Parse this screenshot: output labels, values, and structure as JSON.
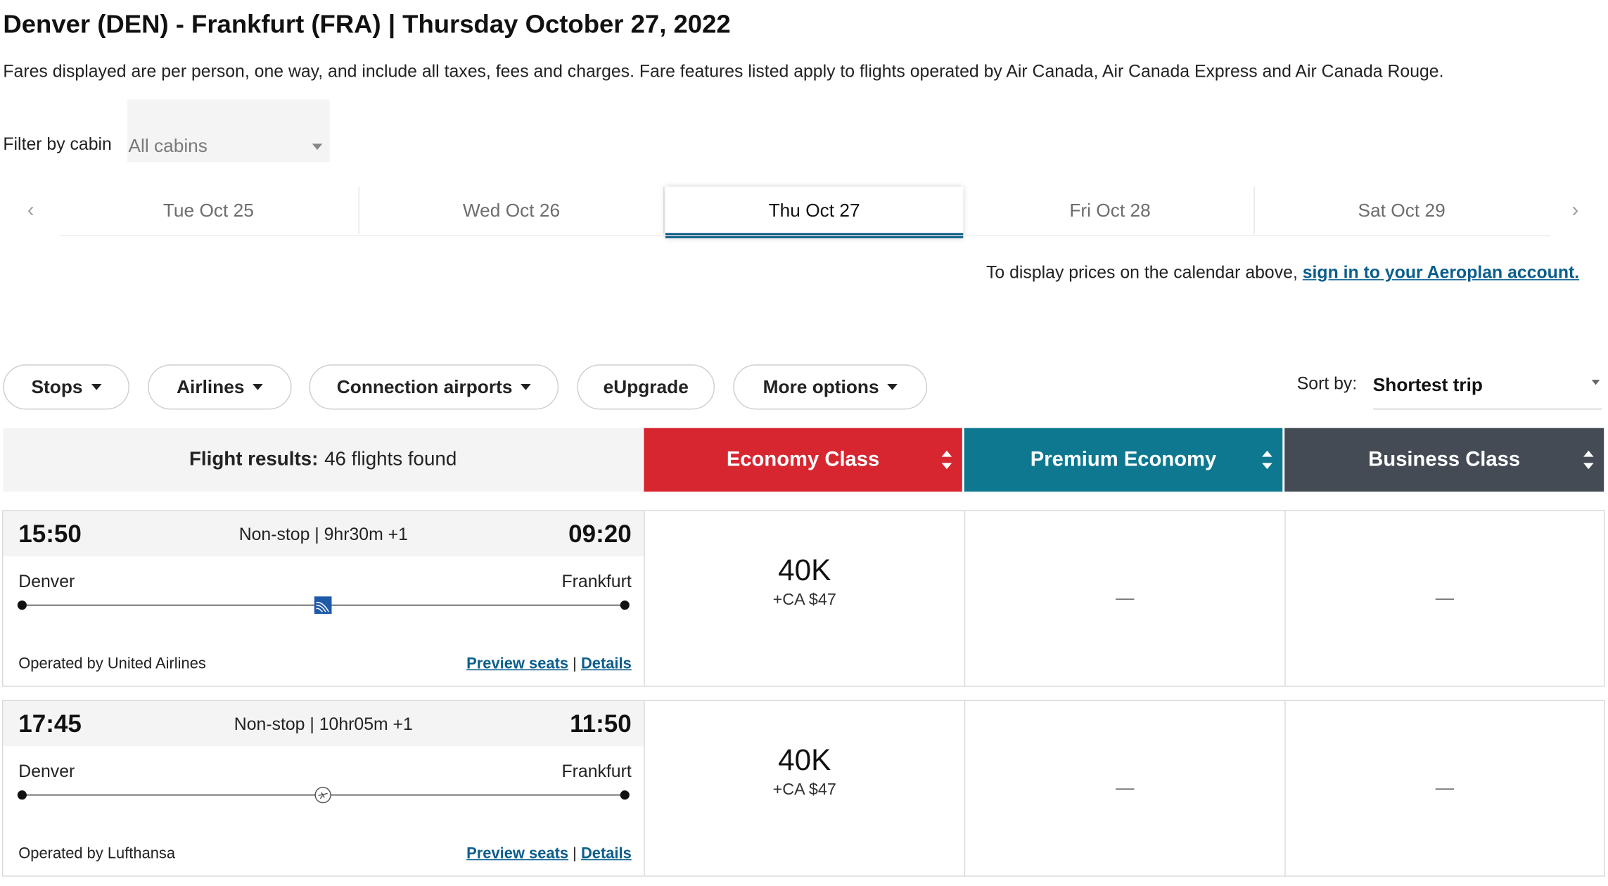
{
  "header": {
    "title": "Denver (DEN) - Frankfurt (FRA)  |  Thursday October 27, 2022",
    "note": "Fares displayed are per person, one way, and include all taxes, fees and charges. Fare features listed apply to flights operated by Air Canada, Air Canada Express and Air Canada Rouge."
  },
  "filter": {
    "label": "Filter by cabin",
    "value": "All cabins"
  },
  "dates": [
    {
      "label": "Tue Oct 25",
      "active": false
    },
    {
      "label": "Wed Oct 26",
      "active": false
    },
    {
      "label": "Thu Oct 27",
      "active": true
    },
    {
      "label": "Fri Oct 28",
      "active": false
    },
    {
      "label": "Sat Oct 29",
      "active": false
    }
  ],
  "nav": {
    "prev": "‹",
    "next": "›"
  },
  "signin": {
    "text": "To display prices on the calendar above, ",
    "link": "sign in to your Aeroplan account."
  },
  "filters": {
    "stops": "Stops",
    "airlines": "Airlines",
    "connection": "Connection airports",
    "eupgrade": "eUpgrade",
    "more": "More options"
  },
  "sort": {
    "label": "Sort by:",
    "value": "Shortest trip"
  },
  "results": {
    "label": "Flight results:",
    "count": "46 flights found"
  },
  "cabins": {
    "economy": "Economy Class",
    "premium": "Premium Economy",
    "business": "Business Class"
  },
  "colors": {
    "economy": "#d72630",
    "premium": "#0e7890",
    "business": "#444b55",
    "link": "#0b5e8c",
    "active_tab": "#0b5b84"
  },
  "flights": [
    {
      "depart": "15:50",
      "arrive": "09:20",
      "summary": "Non-stop | 9hr30m +1",
      "from": "Denver",
      "to": "Frankfurt",
      "operator": "Operated by United Airlines",
      "logo_icon": "united-airlines-logo-icon",
      "preview": "Preview seats",
      "sep": "|",
      "details": "Details",
      "economy_miles": "40K",
      "economy_tax": "+CA $47",
      "premium": "—",
      "business": "—"
    },
    {
      "depart": "17:45",
      "arrive": "11:50",
      "summary": "Non-stop | 10hr05m +1",
      "from": "Denver",
      "to": "Frankfurt",
      "operator": "Operated by Lufthansa",
      "logo_icon": "lufthansa-logo-icon",
      "preview": "Preview seats",
      "sep": "|",
      "details": "Details",
      "economy_miles": "40K",
      "economy_tax": "+CA $47",
      "premium": "—",
      "business": "—"
    }
  ]
}
